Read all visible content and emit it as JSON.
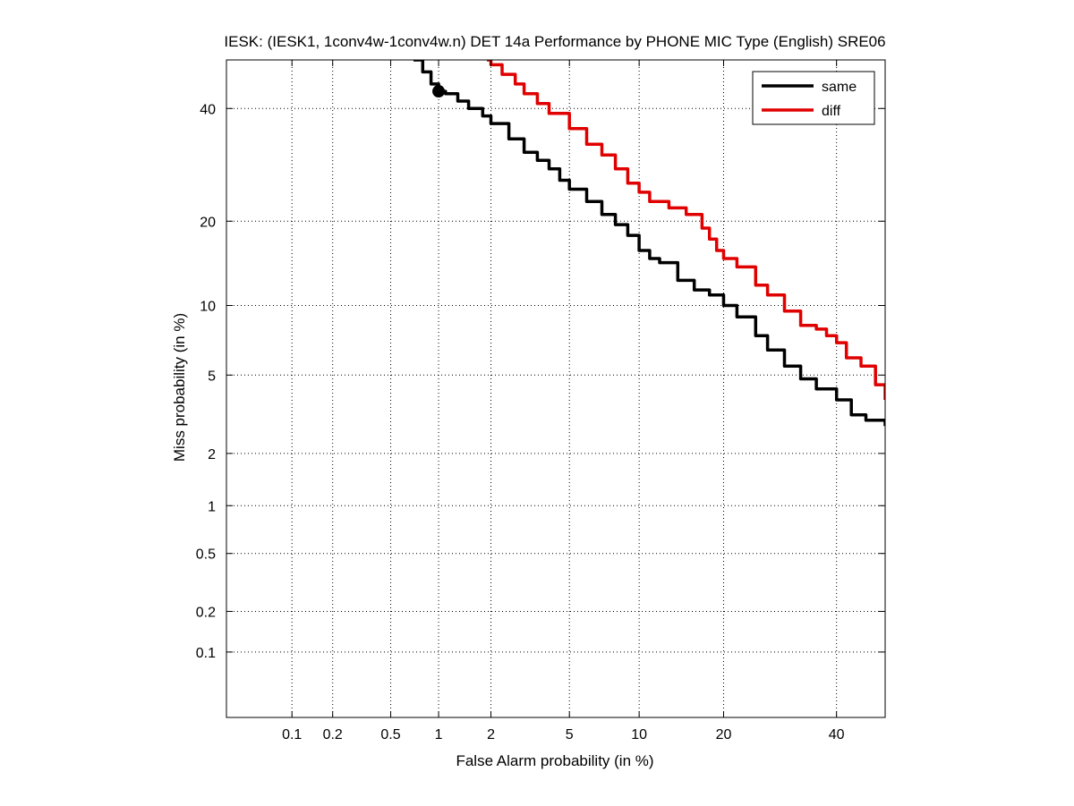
{
  "chart_data": {
    "type": "line",
    "title": "IESK: (IESK1, 1conv4w-1conv4w.n) DET 14a Performance by PHONE MIC Type (English) SRE06",
    "xlabel": "False Alarm probability (in %)",
    "ylabel": "Miss probability (in %)",
    "scale": "normal-deviate (probit)",
    "xlim": [
      0.03,
      50
    ],
    "ylim": [
      0.03,
      50
    ],
    "xticks": [
      0.1,
      0.2,
      0.5,
      1,
      2,
      5,
      10,
      20,
      40
    ],
    "xtick_labels": [
      "0.1",
      "0.2",
      "0.5",
      "1",
      "2",
      "5",
      "10",
      "20",
      "40"
    ],
    "yticks": [
      0.1,
      0.2,
      0.5,
      1,
      2,
      5,
      10,
      20,
      40
    ],
    "ytick_labels": [
      "0.1",
      "0.2",
      "0.5",
      "1",
      "2",
      "5",
      "10",
      "20",
      "40"
    ],
    "grid": true,
    "legend_position": "top-right",
    "series": [
      {
        "name": "same",
        "color": "#000000",
        "x": [
          0.7,
          0.8,
          0.9,
          1.0,
          1.1,
          1.3,
          1.5,
          1.8,
          2.0,
          2.5,
          3.0,
          3.5,
          4.0,
          4.5,
          5.0,
          6.0,
          7.0,
          8.0,
          9.0,
          10.0,
          11.0,
          12.0,
          14.0,
          16.0,
          18.0,
          20.0,
          22.0,
          25.0,
          27.0,
          30.0,
          33.0,
          36.0,
          40.0,
          43.0,
          46.0,
          50.0
        ],
        "y": [
          50.0,
          47.5,
          45.0,
          43.5,
          43.0,
          41.5,
          40.0,
          38.5,
          37.0,
          34.0,
          31.5,
          30.0,
          28.5,
          26.5,
          25.0,
          23.0,
          21.0,
          19.5,
          18.0,
          16.0,
          15.0,
          14.5,
          12.5,
          11.5,
          11.0,
          10.0,
          9.0,
          7.5,
          6.5,
          5.5,
          4.8,
          4.3,
          3.8,
          3.2,
          3.0,
          2.8
        ]
      },
      {
        "name": "diff",
        "color": "#e00000",
        "x": [
          1.9,
          2.0,
          2.3,
          2.7,
          3.0,
          3.5,
          4.0,
          5.0,
          6.0,
          7.0,
          8.0,
          9.0,
          10.0,
          11.0,
          12.0,
          13.0,
          15.0,
          17.0,
          18.0,
          19.0,
          20.0,
          22.0,
          25.0,
          27.0,
          30.0,
          33.0,
          36.0,
          38.0,
          40.0,
          42.0,
          45.0,
          48.0,
          50.0
        ],
        "y": [
          50.0,
          49.0,
          47.0,
          45.0,
          43.0,
          41.0,
          39.0,
          36.0,
          33.0,
          31.0,
          28.5,
          26.0,
          24.5,
          23.0,
          23.0,
          22.0,
          21.0,
          19.0,
          17.5,
          16.0,
          15.0,
          14.0,
          12.0,
          11.0,
          9.5,
          8.3,
          8.0,
          7.5,
          7.0,
          6.0,
          5.5,
          4.5,
          3.8
        ]
      }
    ],
    "marker": {
      "series": "same",
      "x": 1.0,
      "y": 43.5
    }
  }
}
